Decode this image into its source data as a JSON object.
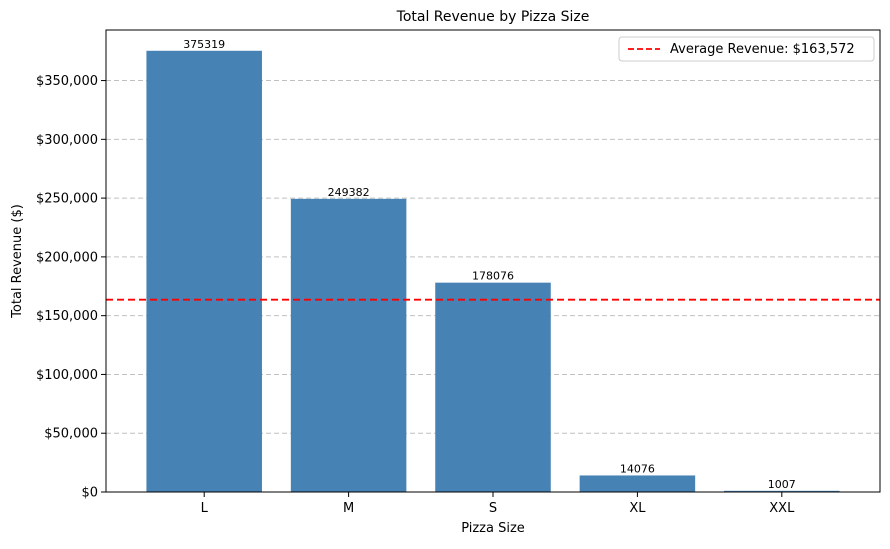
{
  "chart_data": {
    "type": "bar",
    "title": "Total Revenue by Pizza Size",
    "xlabel": "Pizza Size",
    "ylabel": "Total Revenue ($)",
    "categories": [
      "L",
      "M",
      "S",
      "XL",
      "XXL"
    ],
    "values": [
      375319,
      249382,
      178076,
      14076,
      1007
    ],
    "data_labels": [
      "375319",
      "249382",
      "178076",
      "14076",
      "1007"
    ],
    "ylim": [
      0,
      393000
    ],
    "y_ticks": [
      0,
      50000,
      100000,
      150000,
      200000,
      250000,
      300000,
      350000
    ],
    "y_tick_labels": [
      "$0",
      "$50,000",
      "$100,000",
      "$150,000",
      "$200,000",
      "$250,000",
      "$300,000",
      "$350,000"
    ],
    "grid": "y-axis dashed",
    "bar_color": "#4682b4",
    "average_line": {
      "value": 163572,
      "label": "Average Revenue: $163,572",
      "color": "#ff0000",
      "style": "dashed"
    },
    "legend_position": "top-right"
  }
}
